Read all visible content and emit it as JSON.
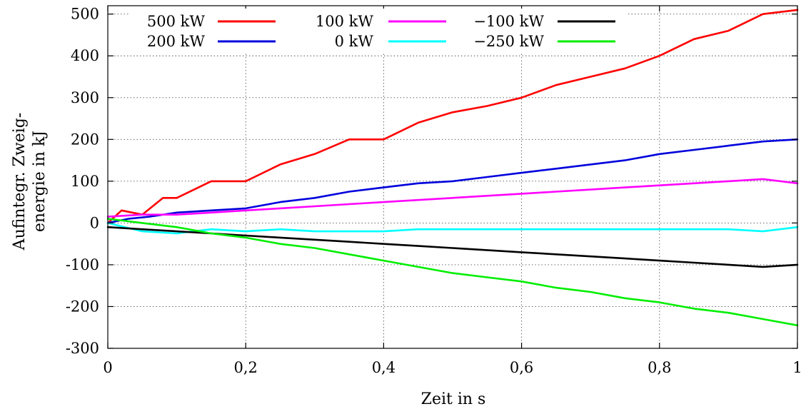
{
  "chart_data": {
    "type": "line",
    "xlabel": "Zeit in s",
    "ylabel_lines": [
      "Aufintegr. Zweig-",
      "energie in kJ"
    ],
    "xlim": [
      0,
      1
    ],
    "ylim": [
      -300,
      520
    ],
    "x_ticks": [
      {
        "value": 0,
        "label": "0"
      },
      {
        "value": 0.2,
        "label": "0,2"
      },
      {
        "value": 0.4,
        "label": "0,4"
      },
      {
        "value": 0.6,
        "label": "0,6"
      },
      {
        "value": 0.8,
        "label": "0,8"
      },
      {
        "value": 1,
        "label": "1"
      }
    ],
    "y_ticks": [
      {
        "value": -300,
        "label": "-300"
      },
      {
        "value": -200,
        "label": "-200"
      },
      {
        "value": -100,
        "label": "-100"
      },
      {
        "value": 0,
        "label": "0"
      },
      {
        "value": 100,
        "label": "100"
      },
      {
        "value": 200,
        "label": "200"
      },
      {
        "value": 300,
        "label": "300"
      },
      {
        "value": 400,
        "label": "400"
      },
      {
        "value": 500,
        "label": "500"
      }
    ],
    "grid": true,
    "legend_position": "top",
    "series": [
      {
        "name": "500 kW",
        "color": "#ff0000",
        "x": [
          0,
          0.02,
          0.05,
          0.08,
          0.1,
          0.15,
          0.2,
          0.25,
          0.3,
          0.35,
          0.4,
          0.45,
          0.5,
          0.55,
          0.6,
          0.65,
          0.7,
          0.75,
          0.8,
          0.85,
          0.9,
          0.95,
          1.0
        ],
        "y": [
          0,
          30,
          20,
          60,
          60,
          100,
          100,
          140,
          165,
          200,
          200,
          240,
          265,
          280,
          300,
          330,
          350,
          370,
          400,
          440,
          460,
          500,
          510
        ]
      },
      {
        "name": "200 kW",
        "color": "#0000dd",
        "x": [
          0,
          0.03,
          0.06,
          0.1,
          0.15,
          0.2,
          0.25,
          0.3,
          0.35,
          0.4,
          0.45,
          0.5,
          0.55,
          0.6,
          0.65,
          0.7,
          0.75,
          0.8,
          0.85,
          0.9,
          0.95,
          1.0
        ],
        "y": [
          0,
          10,
          15,
          25,
          30,
          35,
          50,
          60,
          75,
          85,
          95,
          100,
          110,
          120,
          130,
          140,
          150,
          165,
          175,
          185,
          195,
          200
        ]
      },
      {
        "name": "100 kW",
        "color": "#ff00ff",
        "x": [
          0,
          0.05,
          0.1,
          0.15,
          0.2,
          0.25,
          0.3,
          0.35,
          0.4,
          0.45,
          0.5,
          0.55,
          0.6,
          0.65,
          0.7,
          0.75,
          0.8,
          0.85,
          0.9,
          0.95,
          1.0
        ],
        "y": [
          15,
          20,
          20,
          25,
          30,
          35,
          40,
          45,
          50,
          55,
          60,
          65,
          70,
          75,
          80,
          85,
          90,
          95,
          100,
          105,
          95
        ]
      },
      {
        "name": "0 kW",
        "color": "#00ffff",
        "x": [
          0,
          0.05,
          0.1,
          0.15,
          0.2,
          0.25,
          0.3,
          0.35,
          0.4,
          0.45,
          0.5,
          0.55,
          0.6,
          0.65,
          0.7,
          0.75,
          0.8,
          0.85,
          0.9,
          0.95,
          1.0
        ],
        "y": [
          0,
          -20,
          -25,
          -15,
          -20,
          -15,
          -20,
          -20,
          -20,
          -15,
          -15,
          -15,
          -15,
          -15,
          -15,
          -15,
          -15,
          -15,
          -15,
          -20,
          -10
        ]
      },
      {
        "name": "−100 kW",
        "color": "#000000",
        "x": [
          0,
          0.05,
          0.1,
          0.15,
          0.2,
          0.25,
          0.3,
          0.35,
          0.4,
          0.45,
          0.5,
          0.55,
          0.6,
          0.65,
          0.7,
          0.75,
          0.8,
          0.85,
          0.9,
          0.95,
          1.0
        ],
        "y": [
          -10,
          -15,
          -20,
          -25,
          -30,
          -35,
          -40,
          -45,
          -50,
          -55,
          -60,
          -65,
          -70,
          -75,
          -80,
          -85,
          -90,
          -95,
          -100,
          -105,
          -100
        ]
      },
      {
        "name": "−250 kW",
        "color": "#00ee00",
        "x": [
          0,
          0.05,
          0.1,
          0.15,
          0.2,
          0.25,
          0.3,
          0.35,
          0.4,
          0.45,
          0.5,
          0.55,
          0.6,
          0.65,
          0.7,
          0.75,
          0.8,
          0.85,
          0.9,
          0.95,
          1.0
        ],
        "y": [
          10,
          0,
          -10,
          -25,
          -35,
          -50,
          -60,
          -75,
          -90,
          -105,
          -120,
          -130,
          -140,
          -155,
          -165,
          -180,
          -190,
          -205,
          -215,
          -230,
          -245
        ]
      }
    ]
  }
}
